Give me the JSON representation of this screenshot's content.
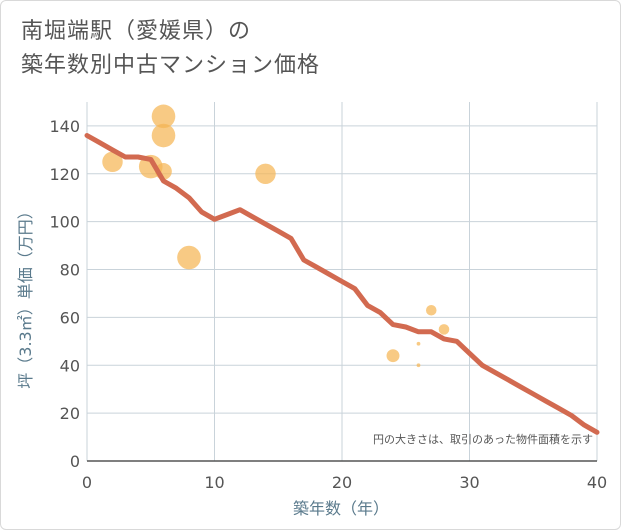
{
  "chart_data": {
    "type": "scatter",
    "title_lines": [
      "南堀端駅（愛媛県）の",
      "築年数別中古マンション価格"
    ],
    "xlabel": "築年数（年）",
    "ylabel": "坪（3.3㎡）単価（万円）",
    "xlim": [
      0,
      40
    ],
    "ylim": [
      0,
      150
    ],
    "xticks": [
      0,
      10,
      20,
      30,
      40
    ],
    "yticks": [
      0,
      20,
      40,
      60,
      80,
      100,
      120,
      140
    ],
    "grid": true,
    "note": "円の大きさは、取引のあった物件面積を示す",
    "colors": {
      "bubble": "#f5b555",
      "line": "#d26a50",
      "grid": "#c9d3da"
    },
    "points": [
      {
        "x": 2,
        "y": 125,
        "size": 3
      },
      {
        "x": 5,
        "y": 123,
        "size": 4
      },
      {
        "x": 6,
        "y": 121,
        "size": 2
      },
      {
        "x": 6,
        "y": 136,
        "size": 4
      },
      {
        "x": 6,
        "y": 144,
        "size": 4
      },
      {
        "x": 8,
        "y": 85,
        "size": 4
      },
      {
        "x": 14,
        "y": 120,
        "size": 3
      },
      {
        "x": 24,
        "y": 44,
        "size": 1.2
      },
      {
        "x": 26,
        "y": 49,
        "size": 0.1
      },
      {
        "x": 26,
        "y": 40,
        "size": 0.1
      },
      {
        "x": 27,
        "y": 63,
        "size": 0.8
      },
      {
        "x": 28,
        "y": 55,
        "size": 0.8
      }
    ],
    "trend": {
      "x": [
        0,
        1,
        2,
        3,
        4,
        5,
        6,
        7,
        8,
        9,
        10,
        11,
        12,
        13,
        14,
        15,
        16,
        17,
        18,
        19,
        20,
        21,
        22,
        23,
        24,
        25,
        26,
        27,
        28,
        29,
        30,
        31,
        32,
        33,
        34,
        35,
        36,
        37,
        38,
        39,
        40
      ],
      "y": [
        136,
        133,
        130,
        127,
        127,
        126,
        117,
        114,
        110,
        104,
        101,
        103,
        105,
        102,
        99,
        96,
        93,
        84,
        81,
        78,
        75,
        72,
        65,
        62,
        57,
        56,
        54,
        54,
        51,
        50,
        45,
        40,
        37,
        34,
        31,
        28,
        25,
        22,
        19,
        15,
        12
      ]
    }
  }
}
